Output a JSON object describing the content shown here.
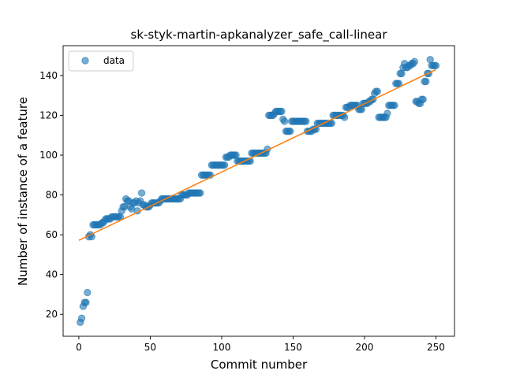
{
  "chart_data": {
    "type": "scatter",
    "title": "sk-styk-martin-apkanalyzer_safe_call-linear",
    "xlabel": "Commit number",
    "ylabel": "Number of instance of a feature",
    "xlim": [
      -11,
      263
    ],
    "ylim": [
      9,
      155
    ],
    "xticks": [
      0,
      50,
      100,
      150,
      200,
      250
    ],
    "yticks": [
      20,
      40,
      60,
      80,
      100,
      120,
      140
    ],
    "legend": {
      "entries": [
        "data"
      ],
      "placement": "top-left"
    },
    "colors": {
      "points": "#1f77b4",
      "fit": "#ff7f0e"
    },
    "series": [
      {
        "name": "data",
        "kind": "scatter",
        "points": [
          [
            1,
            16
          ],
          [
            2,
            18
          ],
          [
            3,
            24
          ],
          [
            4,
            26
          ],
          [
            5,
            26
          ],
          [
            6,
            31
          ],
          [
            7,
            59
          ],
          [
            8,
            60
          ],
          [
            9,
            59
          ],
          [
            10,
            65
          ],
          [
            11,
            65
          ],
          [
            12,
            65
          ],
          [
            13,
            65
          ],
          [
            14,
            65
          ],
          [
            15,
            65
          ],
          [
            16,
            66
          ],
          [
            17,
            66
          ],
          [
            18,
            67
          ],
          [
            19,
            68
          ],
          [
            20,
            68
          ],
          [
            21,
            68
          ],
          [
            22,
            68
          ],
          [
            23,
            69
          ],
          [
            24,
            69
          ],
          [
            25,
            69
          ],
          [
            26,
            69
          ],
          [
            27,
            69
          ],
          [
            28,
            69
          ],
          [
            29,
            69
          ],
          [
            30,
            72
          ],
          [
            31,
            74
          ],
          [
            32,
            74
          ],
          [
            33,
            78
          ],
          [
            34,
            77
          ],
          [
            35,
            77
          ],
          [
            36,
            74
          ],
          [
            37,
            73
          ],
          [
            38,
            76
          ],
          [
            39,
            76
          ],
          [
            40,
            77
          ],
          [
            41,
            72
          ],
          [
            42,
            76
          ],
          [
            43,
            77
          ],
          [
            44,
            81
          ],
          [
            45,
            75
          ],
          [
            46,
            75
          ],
          [
            47,
            74
          ],
          [
            48,
            74
          ],
          [
            49,
            74
          ],
          [
            50,
            75
          ],
          [
            51,
            76
          ],
          [
            52,
            76
          ],
          [
            53,
            76
          ],
          [
            54,
            76
          ],
          [
            55,
            76
          ],
          [
            56,
            76
          ],
          [
            57,
            77
          ],
          [
            58,
            78
          ],
          [
            59,
            78
          ],
          [
            60,
            78
          ],
          [
            61,
            78
          ],
          [
            62,
            78
          ],
          [
            63,
            78
          ],
          [
            64,
            78
          ],
          [
            65,
            78
          ],
          [
            66,
            78
          ],
          [
            67,
            78
          ],
          [
            68,
            78
          ],
          [
            69,
            78
          ],
          [
            70,
            78
          ],
          [
            71,
            78
          ],
          [
            72,
            80
          ],
          [
            73,
            80
          ],
          [
            74,
            80
          ],
          [
            75,
            80
          ],
          [
            76,
            80
          ],
          [
            77,
            81
          ],
          [
            78,
            81
          ],
          [
            79,
            81
          ],
          [
            80,
            81
          ],
          [
            81,
            81
          ],
          [
            82,
            81
          ],
          [
            83,
            81
          ],
          [
            84,
            81
          ],
          [
            85,
            81
          ],
          [
            86,
            90
          ],
          [
            87,
            90
          ],
          [
            88,
            90
          ],
          [
            89,
            90
          ],
          [
            90,
            90
          ],
          [
            91,
            90
          ],
          [
            92,
            90
          ],
          [
            93,
            95
          ],
          [
            94,
            95
          ],
          [
            95,
            95
          ],
          [
            96,
            95
          ],
          [
            97,
            95
          ],
          [
            98,
            95
          ],
          [
            99,
            95
          ],
          [
            100,
            95
          ],
          [
            101,
            95
          ],
          [
            102,
            95
          ],
          [
            103,
            99
          ],
          [
            104,
            99
          ],
          [
            105,
            99
          ],
          [
            106,
            100
          ],
          [
            107,
            100
          ],
          [
            108,
            100
          ],
          [
            109,
            100
          ],
          [
            110,
            100
          ],
          [
            111,
            97
          ],
          [
            112,
            97
          ],
          [
            113,
            97
          ],
          [
            114,
            97
          ],
          [
            115,
            97
          ],
          [
            116,
            97
          ],
          [
            117,
            97
          ],
          [
            118,
            97
          ],
          [
            119,
            97
          ],
          [
            120,
            97
          ],
          [
            121,
            101
          ],
          [
            122,
            101
          ],
          [
            123,
            101
          ],
          [
            124,
            101
          ],
          [
            125,
            101
          ],
          [
            126,
            101
          ],
          [
            127,
            101
          ],
          [
            128,
            101
          ],
          [
            129,
            101
          ],
          [
            130,
            101
          ],
          [
            131,
            101
          ],
          [
            132,
            103
          ],
          [
            133,
            120
          ],
          [
            134,
            120
          ],
          [
            135,
            120
          ],
          [
            136,
            120
          ],
          [
            137,
            121
          ],
          [
            138,
            122
          ],
          [
            139,
            122
          ],
          [
            140,
            122
          ],
          [
            141,
            122
          ],
          [
            142,
            122
          ],
          [
            143,
            118
          ],
          [
            144,
            117
          ],
          [
            145,
            112
          ],
          [
            146,
            112
          ],
          [
            147,
            112
          ],
          [
            148,
            112
          ],
          [
            149,
            117
          ],
          [
            150,
            117
          ],
          [
            151,
            117
          ],
          [
            152,
            117
          ],
          [
            153,
            117
          ],
          [
            154,
            117
          ],
          [
            155,
            117
          ],
          [
            156,
            117
          ],
          [
            157,
            117
          ],
          [
            158,
            117
          ],
          [
            159,
            117
          ],
          [
            160,
            112
          ],
          [
            161,
            112
          ],
          [
            162,
            112
          ],
          [
            163,
            112
          ],
          [
            164,
            113
          ],
          [
            165,
            113
          ],
          [
            166,
            113
          ],
          [
            167,
            116
          ],
          [
            168,
            116
          ],
          [
            169,
            116
          ],
          [
            170,
            116
          ],
          [
            171,
            116
          ],
          [
            172,
            116
          ],
          [
            173,
            116
          ],
          [
            174,
            116
          ],
          [
            175,
            116
          ],
          [
            176,
            116
          ],
          [
            177,
            116
          ],
          [
            178,
            120
          ],
          [
            179,
            120
          ],
          [
            180,
            120
          ],
          [
            181,
            120
          ],
          [
            182,
            120
          ],
          [
            183,
            120
          ],
          [
            184,
            120
          ],
          [
            185,
            120
          ],
          [
            186,
            119
          ],
          [
            187,
            124
          ],
          [
            188,
            124
          ],
          [
            189,
            124
          ],
          [
            190,
            125
          ],
          [
            191,
            125
          ],
          [
            192,
            125
          ],
          [
            193,
            125
          ],
          [
            194,
            125
          ],
          [
            195,
            125
          ],
          [
            196,
            123
          ],
          [
            197,
            123
          ],
          [
            198,
            123
          ],
          [
            199,
            126
          ],
          [
            200,
            126
          ],
          [
            201,
            126
          ],
          [
            202,
            126
          ],
          [
            203,
            127
          ],
          [
            204,
            127
          ],
          [
            205,
            128
          ],
          [
            206,
            128
          ],
          [
            207,
            131
          ],
          [
            208,
            132
          ],
          [
            209,
            132
          ],
          [
            210,
            119
          ],
          [
            211,
            119
          ],
          [
            212,
            119
          ],
          [
            213,
            119
          ],
          [
            214,
            119
          ],
          [
            215,
            119
          ],
          [
            216,
            121
          ],
          [
            217,
            125
          ],
          [
            218,
            125
          ],
          [
            219,
            125
          ],
          [
            220,
            125
          ],
          [
            221,
            125
          ],
          [
            222,
            136
          ],
          [
            223,
            136
          ],
          [
            224,
            136
          ],
          [
            225,
            141
          ],
          [
            226,
            141
          ],
          [
            227,
            144
          ],
          [
            228,
            146
          ],
          [
            229,
            144
          ],
          [
            230,
            144
          ],
          [
            231,
            145
          ],
          [
            232,
            145
          ],
          [
            233,
            146
          ],
          [
            234,
            146
          ],
          [
            235,
            147
          ],
          [
            236,
            127
          ],
          [
            237,
            127
          ],
          [
            238,
            126
          ],
          [
            239,
            126
          ],
          [
            240,
            128
          ],
          [
            241,
            128
          ],
          [
            242,
            137
          ],
          [
            243,
            137
          ],
          [
            244,
            141
          ],
          [
            245,
            141
          ],
          [
            246,
            148
          ],
          [
            247,
            145
          ],
          [
            248,
            145
          ],
          [
            249,
            145
          ],
          [
            250,
            145
          ]
        ]
      },
      {
        "name": "",
        "kind": "line",
        "points": [
          [
            0,
            57.2
          ],
          [
            250,
            143
          ]
        ]
      }
    ]
  }
}
